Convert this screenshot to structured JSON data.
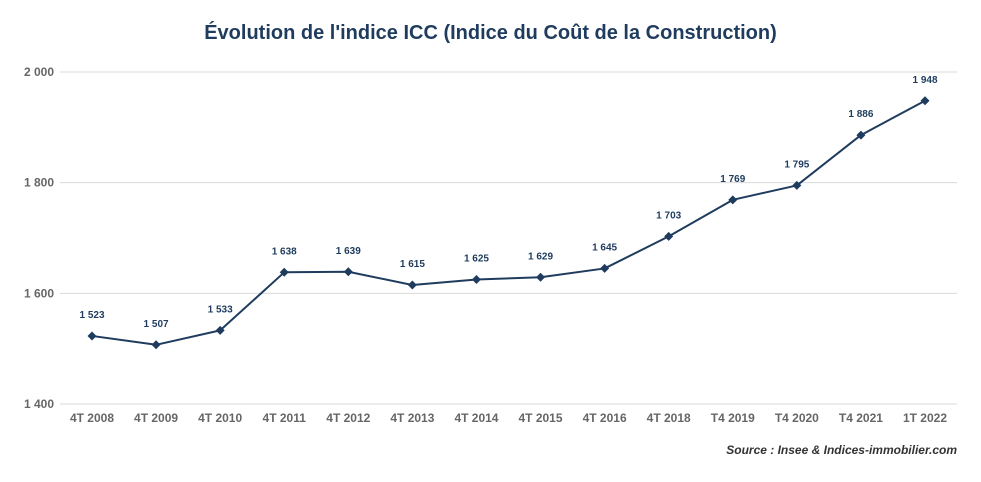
{
  "chart_data": {
    "type": "line",
    "title": "Évolution de l'indice ICC (Indice du Coût de la Construction)",
    "categories": [
      "4T 2008",
      "4T 2009",
      "4T 2010",
      "4T 2011",
      "4T 2012",
      "4T 2013",
      "4T 2014",
      "4T 2015",
      "4T 2016",
      "4T 2018",
      "T4 2019",
      "T4 2020",
      "T4 2021",
      "1T 2022"
    ],
    "series": [
      {
        "values": [
          1523,
          1507,
          1533,
          1638,
          1639,
          1615,
          1625,
          1629,
          1645,
          1703,
          1769,
          1795,
          1886,
          1948
        ],
        "data_labels": [
          "1 523",
          "1 507",
          "1 533",
          "1 638",
          "1 639",
          "1 615",
          "1 625",
          "1 629",
          "1 645",
          "1 703",
          "1 769",
          "1 795",
          "1 886",
          "1 948"
        ],
        "color": "#1f3c5e"
      }
    ],
    "ylim": [
      1400,
      2000
    ],
    "yticks": [
      1400,
      1600,
      1800,
      2000
    ],
    "ytick_labels": [
      "1 400",
      "1 600",
      "1 800",
      "2 000"
    ],
    "grid": true,
    "source": "Source : Insee & Indices-immobilier.com"
  }
}
